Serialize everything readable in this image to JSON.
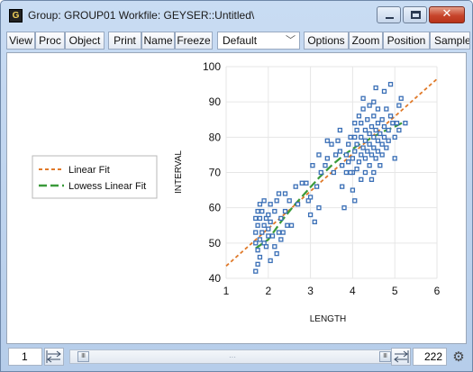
{
  "window": {
    "icon_letter": "G",
    "title": "Group: GROUP01   Workfile: GEYSER::Untitled\\"
  },
  "toolbar": {
    "buttons": [
      "View",
      "Proc",
      "Object",
      "Print",
      "Name",
      "Freeze",
      "Options",
      "Zoom",
      "Position",
      "Sample"
    ],
    "template_select": "Default"
  },
  "chart_data": {
    "type": "scatter",
    "xlabel": "LENGTH",
    "ylabel": "INTERVAL",
    "xlim": [
      1,
      6
    ],
    "ylim": [
      40,
      100
    ],
    "xticks": [
      "1",
      "2",
      "3",
      "4",
      "5",
      "6"
    ],
    "yticks": [
      "40",
      "50",
      "60",
      "70",
      "80",
      "90",
      "100"
    ],
    "legend_position": "left",
    "legend": [
      "Linear Fit",
      "Lowess Linear Fit"
    ],
    "colors": {
      "points": "#3a6fb6",
      "linear": "#e07a2a",
      "lowess": "#3a9a3a"
    },
    "points": [
      [
        1.7,
        42
      ],
      [
        1.75,
        44
      ],
      [
        1.8,
        46
      ],
      [
        1.75,
        48
      ],
      [
        1.7,
        50
      ],
      [
        1.8,
        51
      ],
      [
        1.9,
        50
      ],
      [
        1.95,
        49
      ],
      [
        1.7,
        53
      ],
      [
        1.85,
        53
      ],
      [
        1.75,
        55
      ],
      [
        1.9,
        55
      ],
      [
        2.0,
        54
      ],
      [
        1.7,
        57
      ],
      [
        1.8,
        57
      ],
      [
        1.95,
        57
      ],
      [
        2.05,
        56
      ],
      [
        1.75,
        59
      ],
      [
        1.85,
        59
      ],
      [
        2.0,
        58
      ],
      [
        2.15,
        59
      ],
      [
        1.8,
        61
      ],
      [
        1.9,
        62
      ],
      [
        2.05,
        61
      ],
      [
        2.2,
        62
      ],
      [
        2.1,
        52
      ],
      [
        2.0,
        52
      ],
      [
        2.25,
        53
      ],
      [
        2.05,
        45
      ],
      [
        2.15,
        49
      ],
      [
        2.35,
        53
      ],
      [
        2.4,
        59
      ],
      [
        2.45,
        55
      ],
      [
        2.3,
        51
      ],
      [
        2.3,
        57
      ],
      [
        2.5,
        62
      ],
      [
        2.4,
        64
      ],
      [
        2.65,
        66
      ],
      [
        2.8,
        67
      ],
      [
        2.9,
        67
      ],
      [
        2.7,
        61
      ],
      [
        2.95,
        62
      ],
      [
        3.0,
        63
      ],
      [
        3.0,
        58
      ],
      [
        3.1,
        56
      ],
      [
        3.2,
        60
      ],
      [
        3.15,
        66
      ],
      [
        3.05,
        72
      ],
      [
        3.25,
        70
      ],
      [
        3.2,
        75
      ],
      [
        3.35,
        72
      ],
      [
        3.4,
        74
      ],
      [
        3.4,
        79
      ],
      [
        3.5,
        78
      ],
      [
        3.55,
        70
      ],
      [
        3.6,
        75
      ],
      [
        3.65,
        79
      ],
      [
        3.7,
        76
      ],
      [
        3.75,
        72
      ],
      [
        3.7,
        82
      ],
      [
        3.75,
        66
      ],
      [
        3.8,
        60
      ],
      [
        3.85,
        70
      ],
      [
        3.85,
        75
      ],
      [
        3.9,
        73
      ],
      [
        3.9,
        78
      ],
      [
        3.95,
        80
      ],
      [
        4.0,
        65
      ],
      [
        4.0,
        70
      ],
      [
        4.0,
        74
      ],
      [
        4.05,
        76
      ],
      [
        4.05,
        80
      ],
      [
        4.05,
        84
      ],
      [
        4.1,
        71
      ],
      [
        4.1,
        78
      ],
      [
        4.1,
        82
      ],
      [
        4.15,
        73
      ],
      [
        4.15,
        86
      ],
      [
        4.2,
        68
      ],
      [
        4.2,
        75
      ],
      [
        4.2,
        80
      ],
      [
        4.2,
        84
      ],
      [
        4.25,
        77
      ],
      [
        4.25,
        88
      ],
      [
        4.3,
        70
      ],
      [
        4.3,
        74
      ],
      [
        4.3,
        79
      ],
      [
        4.3,
        82
      ],
      [
        4.35,
        76
      ],
      [
        4.35,
        85
      ],
      [
        4.4,
        72
      ],
      [
        4.4,
        78
      ],
      [
        4.4,
        81
      ],
      [
        4.4,
        89
      ],
      [
        4.45,
        75
      ],
      [
        4.45,
        83
      ],
      [
        4.5,
        70
      ],
      [
        4.5,
        77
      ],
      [
        4.5,
        80
      ],
      [
        4.5,
        86
      ],
      [
        4.5,
        90
      ],
      [
        4.55,
        74
      ],
      [
        4.55,
        82
      ],
      [
        4.6,
        76
      ],
      [
        4.6,
        79
      ],
      [
        4.6,
        84
      ],
      [
        4.6,
        88
      ],
      [
        4.65,
        72
      ],
      [
        4.65,
        81
      ],
      [
        4.7,
        75
      ],
      [
        4.7,
        78
      ],
      [
        4.7,
        85
      ],
      [
        4.75,
        80
      ],
      [
        4.75,
        83
      ],
      [
        4.75,
        93
      ],
      [
        4.8,
        77
      ],
      [
        4.8,
        88
      ],
      [
        4.85,
        82
      ],
      [
        4.85,
        79
      ],
      [
        4.9,
        86
      ],
      [
        4.9,
        95
      ],
      [
        4.95,
        84
      ],
      [
        5.0,
        80
      ],
      [
        5.0,
        74
      ],
      [
        5.05,
        84
      ],
      [
        5.1,
        82
      ],
      [
        5.1,
        89
      ],
      [
        5.15,
        91
      ],
      [
        5.25,
        84
      ],
      [
        4.55,
        94
      ],
      [
        4.25,
        91
      ],
      [
        3.95,
        70
      ],
      [
        4.45,
        68
      ],
      [
        4.05,
        62
      ],
      [
        2.2,
        47
      ],
      [
        2.25,
        64
      ],
      [
        2.55,
        55
      ]
    ],
    "linear_fit": [
      [
        1.0,
        43.5
      ],
      [
        6.0,
        96.5
      ]
    ],
    "lowess_fit": [
      [
        1.7,
        48.5
      ],
      [
        2.0,
        51
      ],
      [
        2.3,
        56
      ],
      [
        2.6,
        60.5
      ],
      [
        2.9,
        64.5
      ],
      [
        3.2,
        68.5
      ],
      [
        3.5,
        72
      ],
      [
        3.8,
        75
      ],
      [
        4.1,
        77.5
      ],
      [
        4.4,
        79.5
      ],
      [
        4.7,
        81.5
      ],
      [
        5.0,
        83
      ],
      [
        5.25,
        84.5
      ]
    ]
  },
  "statusbar": {
    "row_start": "1",
    "row_end": "222",
    "scroll_position": 0.02
  }
}
